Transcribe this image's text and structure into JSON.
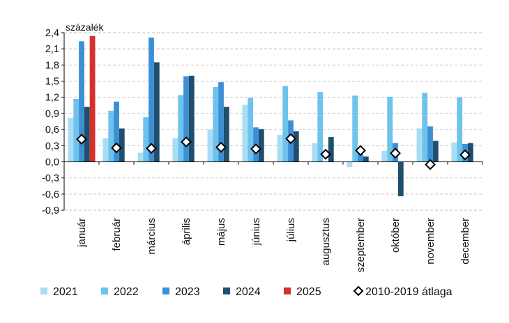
{
  "chart_data": {
    "type": "bar",
    "unit_label": "százalék",
    "categories": [
      "január",
      "február",
      "március",
      "április",
      "május",
      "június",
      "július",
      "augusztus",
      "szeptember",
      "október",
      "november",
      "december"
    ],
    "ylim": [
      -0.9,
      2.4
    ],
    "yticks": [
      "2,4",
      "2,1",
      "1,8",
      "1,5",
      "1,2",
      "0,9",
      "0,6",
      "0,3",
      "0,0",
      "-0,3",
      "-0,6",
      "-0,9"
    ],
    "ytick_values": [
      2.4,
      2.1,
      1.8,
      1.5,
      1.2,
      0.9,
      0.6,
      0.3,
      0.0,
      -0.3,
      -0.6,
      -0.9
    ],
    "grid": true,
    "legend_position": "bottom",
    "series": [
      {
        "name": "2021",
        "color": "#a8ddf5",
        "values": [
          0.82,
          0.44,
          0.17,
          0.44,
          0.6,
          1.06,
          0.5,
          0.35,
          -0.1,
          0.2,
          0.62,
          0.36
        ]
      },
      {
        "name": "2022",
        "color": "#6ec3ec",
        "values": [
          1.17,
          0.95,
          0.83,
          1.24,
          1.39,
          1.19,
          1.41,
          1.3,
          1.23,
          1.21,
          1.28,
          1.2
        ]
      },
      {
        "name": "2023",
        "color": "#3d8fd4",
        "values": [
          2.24,
          1.12,
          2.31,
          1.59,
          1.48,
          0.64,
          0.77,
          0.0,
          0.2,
          0.35,
          0.66,
          0.33
        ]
      },
      {
        "name": "2024",
        "color": "#1f4e6e",
        "values": [
          1.02,
          0.62,
          1.85,
          1.6,
          1.02,
          0.61,
          0.57,
          0.46,
          0.1,
          -0.64,
          0.39,
          0.35
        ]
      },
      {
        "name": "2025",
        "color": "#d7302a",
        "values": [
          2.34,
          null,
          null,
          null,
          null,
          null,
          null,
          null,
          null,
          null,
          null,
          null
        ]
      }
    ],
    "average": {
      "name": "2010-2019 átlaga",
      "values": [
        0.42,
        0.26,
        0.25,
        0.37,
        0.27,
        0.24,
        0.43,
        0.14,
        0.21,
        0.16,
        -0.05,
        0.13
      ]
    }
  }
}
